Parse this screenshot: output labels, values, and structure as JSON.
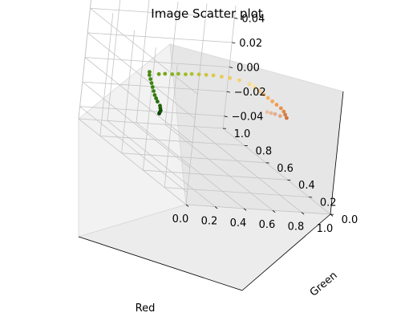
{
  "chart_data": {
    "type": "scatter",
    "projection": "3d",
    "title": "Image Scatter plot",
    "xlabel": "Red",
    "ylabel": "Green",
    "zlabel": "",
    "xlim": [
      0.0,
      1.0
    ],
    "ylim": [
      0.0,
      1.0
    ],
    "zlim": [
      -0.05,
      0.05
    ],
    "x_ticks": [
      "0.0",
      "0.2",
      "0.4",
      "0.6",
      "0.8",
      "1.0"
    ],
    "y_ticks": [
      "0.0",
      "0.2",
      "0.4",
      "0.6",
      "0.8",
      "1.0"
    ],
    "z_ticks": [
      "−0.04",
      "−0.02",
      "0.00",
      "0.02",
      "0.04"
    ],
    "grid": true,
    "series": [
      {
        "description": "points colored by their own RGB value",
        "points": [
          {
            "x": 0.03,
            "y": 0.35,
            "z": 0,
            "color": "#0a3a06"
          },
          {
            "x": 0.05,
            "y": 0.37,
            "z": 0,
            "color": "#0e4a08"
          },
          {
            "x": 0.07,
            "y": 0.39,
            "z": 0,
            "color": "#124f0a"
          },
          {
            "x": 0.09,
            "y": 0.42,
            "z": 0,
            "color": "#1a5a0b"
          },
          {
            "x": 0.11,
            "y": 0.45,
            "z": 0,
            "color": "#23640c"
          },
          {
            "x": 0.13,
            "y": 0.5,
            "z": 0,
            "color": "#286e0c"
          },
          {
            "x": 0.15,
            "y": 0.54,
            "z": 0,
            "color": "#2e760d"
          },
          {
            "x": 0.17,
            "y": 0.58,
            "z": 0,
            "color": "#327a0e"
          },
          {
            "x": 0.2,
            "y": 0.63,
            "z": 0,
            "color": "#378010"
          },
          {
            "x": 0.23,
            "y": 0.68,
            "z": 0,
            "color": "#3a8210"
          },
          {
            "x": 0.26,
            "y": 0.73,
            "z": 0,
            "color": "#3e8412"
          },
          {
            "x": 0.29,
            "y": 0.78,
            "z": 0,
            "color": "#438612"
          },
          {
            "x": 0.32,
            "y": 0.83,
            "z": 0,
            "color": "#478812"
          },
          {
            "x": 0.35,
            "y": 0.87,
            "z": 0,
            "color": "#4b8a13"
          },
          {
            "x": 0.4,
            "y": 0.85,
            "z": 0,
            "color": "#6e9f16"
          },
          {
            "x": 0.45,
            "y": 0.86,
            "z": 0,
            "color": "#7aa81a"
          },
          {
            "x": 0.5,
            "y": 0.86,
            "z": 0,
            "color": "#86b01e"
          },
          {
            "x": 0.55,
            "y": 0.87,
            "z": 0,
            "color": "#92b822"
          },
          {
            "x": 0.6,
            "y": 0.87,
            "z": 0,
            "color": "#a0bd28"
          },
          {
            "x": 0.65,
            "y": 0.88,
            "z": 0,
            "color": "#afc02e"
          },
          {
            "x": 0.7,
            "y": 0.88,
            "z": 0,
            "color": "#bec236"
          },
          {
            "x": 0.75,
            "y": 0.88,
            "z": 0,
            "color": "#cdc440"
          },
          {
            "x": 0.8,
            "y": 0.88,
            "z": 0,
            "color": "#dcc84c"
          },
          {
            "x": 0.85,
            "y": 0.87,
            "z": 0,
            "color": "#e8cb58"
          },
          {
            "x": 0.9,
            "y": 0.86,
            "z": 0,
            "color": "#f0cc64"
          },
          {
            "x": 0.95,
            "y": 0.84,
            "z": 0,
            "color": "#f6cf72"
          },
          {
            "x": 0.99,
            "y": 0.8,
            "z": 0,
            "color": "#f8d890"
          },
          {
            "x": 1.0,
            "y": 0.78,
            "z": 0,
            "color": "#fae6b4"
          },
          {
            "x": 1.0,
            "y": 0.76,
            "z": 0,
            "color": "#f6d8a0"
          },
          {
            "x": 1.0,
            "y": 0.72,
            "z": 0,
            "color": "#f6c88a"
          },
          {
            "x": 1.0,
            "y": 0.68,
            "z": 0,
            "color": "#f6bb74"
          },
          {
            "x": 1.0,
            "y": 0.64,
            "z": 0,
            "color": "#f4b064"
          },
          {
            "x": 1.0,
            "y": 0.6,
            "z": 0,
            "color": "#f2a85a"
          },
          {
            "x": 1.0,
            "y": 0.56,
            "z": 0,
            "color": "#ee9c52"
          },
          {
            "x": 1.0,
            "y": 0.52,
            "z": 0,
            "color": "#e8904c"
          },
          {
            "x": 0.99,
            "y": 0.48,
            "z": 0,
            "color": "#e08646"
          },
          {
            "x": 0.97,
            "y": 0.44,
            "z": 0,
            "color": "#d87c40"
          },
          {
            "x": 0.95,
            "y": 0.4,
            "z": 0,
            "color": "#d0743c"
          },
          {
            "x": 0.92,
            "y": 0.42,
            "z": 0,
            "color": "#e0a484"
          },
          {
            "x": 0.9,
            "y": 0.44,
            "z": 0,
            "color": "#e4ae90"
          },
          {
            "x": 0.88,
            "y": 0.45,
            "z": 0,
            "color": "#e8b698"
          },
          {
            "x": 0.86,
            "y": 0.46,
            "z": 0,
            "color": "#ecbea2"
          }
        ]
      }
    ]
  }
}
